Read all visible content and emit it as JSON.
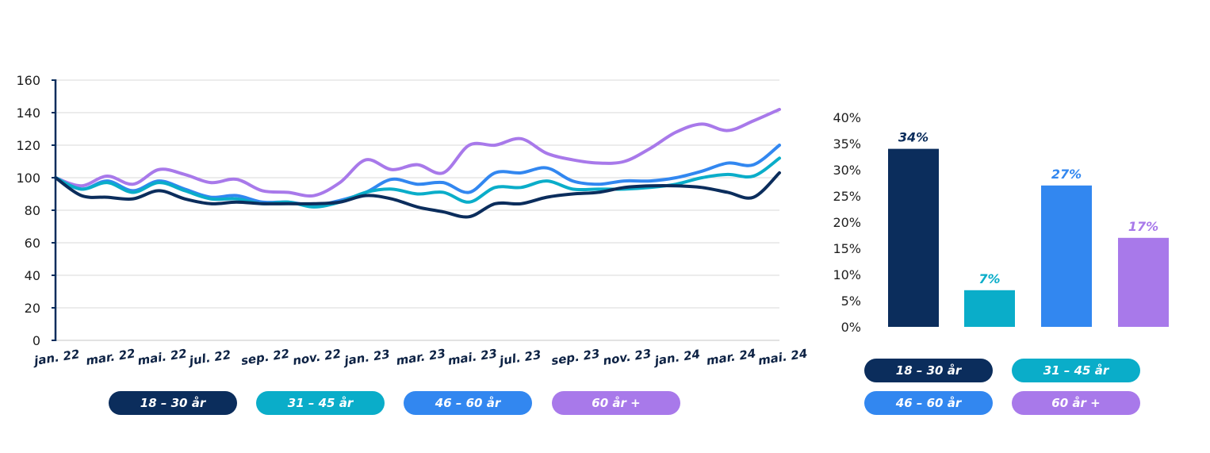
{
  "colors": {
    "18_30": "#0b2d5c",
    "31_45": "#0aadc9",
    "46_60": "#3287f0",
    "60_plus": "#a879ea",
    "grid": "#d9d9d9",
    "axis": "#0b2d5c"
  },
  "legend_left": [
    "18 – 30 år",
    "31 – 45 år",
    "46 – 60 år",
    "60 år +"
  ],
  "legend_right": [
    "18 – 30 år",
    "31 – 45 år",
    "46 – 60 år",
    "60 år +"
  ],
  "chart_data": [
    {
      "type": "line",
      "title": "",
      "xlabel": "",
      "ylabel": "",
      "ylim": [
        0,
        160
      ],
      "yticks": [
        0,
        20,
        40,
        60,
        80,
        100,
        120,
        140,
        160
      ],
      "grid": true,
      "x_tick_labels": [
        "jan. 22",
        "mar. 22",
        "mai. 22",
        "jul. 22",
        "sep. 22",
        "nov. 22",
        "jan. 23",
        "mar. 23",
        "mai. 23",
        "jul. 23",
        "sep. 23",
        "nov. 23",
        "jan. 24",
        "mar. 24",
        "mai. 24"
      ],
      "x": [
        "jan. 22",
        "feb. 22",
        "mar. 22",
        "apr. 22",
        "mai. 22",
        "jun. 22",
        "jul. 22",
        "aug. 22",
        "sep. 22",
        "okt. 22",
        "nov. 22",
        "des. 22",
        "jan. 23",
        "feb. 23",
        "mar. 23",
        "apr. 23",
        "mai. 23",
        "jun. 23",
        "jul. 23",
        "aug. 23",
        "sep. 23",
        "okt. 23",
        "nov. 23",
        "des. 23",
        "jan. 24",
        "feb. 24",
        "mar. 24",
        "apr. 24",
        "mai. 24"
      ],
      "series": [
        {
          "name": "18 – 30 år",
          "color_key": "18_30",
          "values": [
            100,
            89,
            88,
            87,
            92,
            87,
            84,
            85,
            84,
            84,
            84,
            85,
            89,
            87,
            82,
            79,
            76,
            84,
            84,
            88,
            90,
            91,
            94,
            95,
            95,
            94,
            91,
            88,
            103
          ]
        },
        {
          "name": "31 – 45 år",
          "color_key": "31_45",
          "values": [
            100,
            93,
            97,
            91,
            97,
            92,
            87,
            87,
            84,
            85,
            82,
            85,
            91,
            93,
            90,
            91,
            85,
            94,
            94,
            98,
            93,
            93,
            93,
            94,
            96,
            100,
            102,
            101,
            112
          ]
        },
        {
          "name": "46 – 60 år",
          "color_key": "46_60",
          "values": [
            100,
            93,
            98,
            92,
            98,
            93,
            88,
            89,
            85,
            85,
            83,
            86,
            91,
            99,
            96,
            97,
            91,
            103,
            103,
            106,
            98,
            96,
            98,
            98,
            100,
            104,
            109,
            108,
            120
          ]
        },
        {
          "name": "60 år +",
          "color_key": "60_plus",
          "values": [
            100,
            95,
            101,
            96,
            105,
            102,
            97,
            99,
            92,
            91,
            89,
            97,
            111,
            105,
            108,
            103,
            120,
            120,
            124,
            115,
            111,
            109,
            110,
            118,
            128,
            133,
            129,
            135,
            142
          ]
        }
      ]
    },
    {
      "type": "bar",
      "title": "",
      "xlabel": "",
      "ylabel": "",
      "ylim": [
        0,
        40
      ],
      "yticks": [
        "0%",
        "5%",
        "10%",
        "15%",
        "20%",
        "25%",
        "30%",
        "35%",
        "40%"
      ],
      "grid": false,
      "categories": [
        "18 – 30 år",
        "31 – 45 år",
        "46 – 60 år",
        "60 år +"
      ],
      "values": [
        34,
        7,
        27,
        17
      ],
      "data_labels": [
        "34%",
        "7%",
        "27%",
        "17%"
      ],
      "color_keys": [
        "18_30",
        "31_45",
        "46_60",
        "60_plus"
      ]
    }
  ]
}
